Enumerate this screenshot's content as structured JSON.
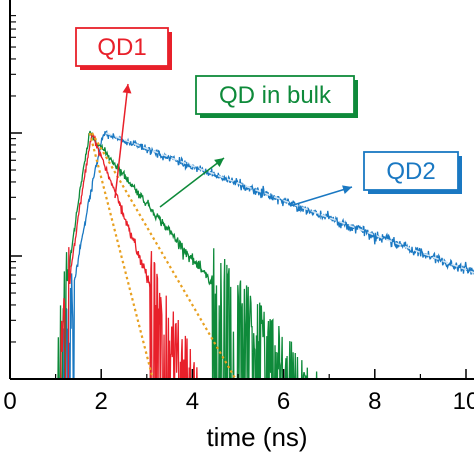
{
  "chart_data": {
    "type": "line",
    "xlabel": "time (ns)",
    "ylabel": "",
    "xlim": [
      0,
      10.4
    ],
    "yscale": "log",
    "ylim": [
      0.008,
      3
    ],
    "x_ticks": [
      0,
      2,
      4,
      6,
      8,
      10
    ],
    "x_tick_labels": [
      "0",
      "2",
      "4",
      "6",
      "8",
      "10"
    ],
    "y_major_ticks": [
      0.01,
      0.1,
      1
    ],
    "grid": false,
    "legend": "none",
    "series": [
      {
        "name": "QD1",
        "color": "#e8202a",
        "onset": 1.1,
        "peak_time": 1.8,
        "decay_ns": 0.45,
        "noise_floor": 0.008
      },
      {
        "name": "QD in bulk",
        "color": "#0e8a3a",
        "onset": 1.05,
        "peak_time": 1.75,
        "decay_ns": 0.95,
        "noise_floor": 0.01
      },
      {
        "name": "QD2",
        "color": "#1a78c2",
        "onset": 1.15,
        "peak_time": 2.05,
        "decay_ns": 3.1,
        "noise_floor": 0.012
      }
    ],
    "fits": [
      {
        "series": "QD1",
        "style": "dotted",
        "color": "#e8a020",
        "x": [
          1.75,
          3.2
        ],
        "y": [
          1.0,
          0.008
        ]
      },
      {
        "series": "QD in bulk",
        "style": "dotted",
        "color": "#e8a020",
        "x": [
          1.8,
          5.1
        ],
        "y": [
          1.0,
          0.008
        ]
      },
      {
        "series": "QD2",
        "style": "dashed",
        "color": "#cfe4f5",
        "x": [
          2.1,
          10.4
        ],
        "y": [
          1.0,
          0.068
        ]
      }
    ],
    "annotations": [
      {
        "label": "QD1",
        "color": "#e8202a",
        "text_color": "#e8202a",
        "text": "QD1"
      },
      {
        "label": "QD in bulk",
        "color": "#0e8a3a",
        "text_color": "#0e8a3a",
        "text": "QD in bulk"
      },
      {
        "label": "QD2",
        "color": "#1a78c2",
        "text_color": "#1a78c2",
        "text": "QD2"
      }
    ]
  }
}
